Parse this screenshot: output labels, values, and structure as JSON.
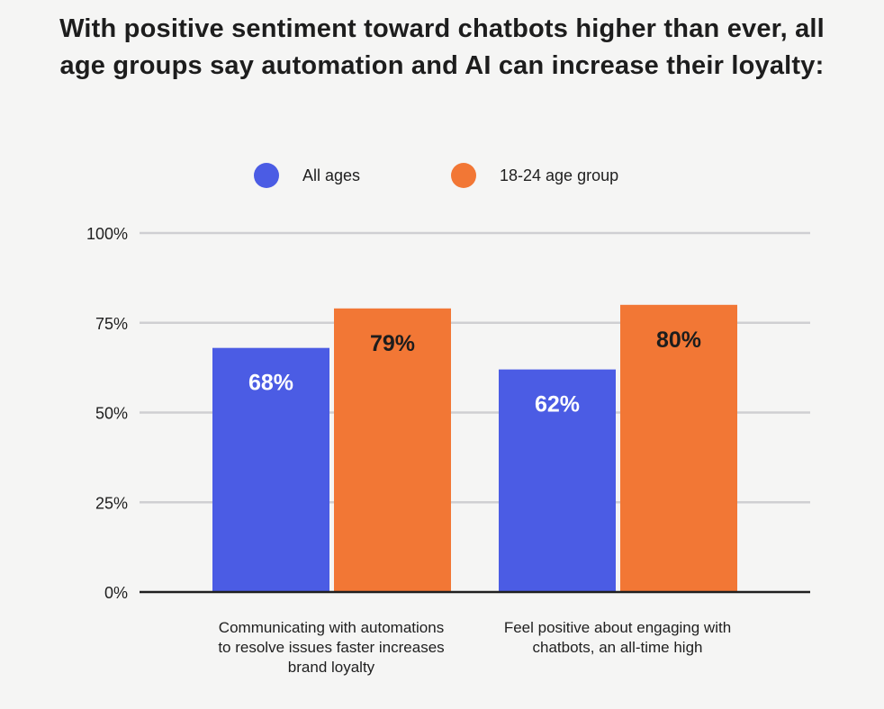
{
  "chart_data": {
    "type": "bar",
    "title": "With positive sentiment toward chatbots higher than ever, all age groups say automation and AI can increase their loyalty:",
    "categories": [
      "Communicating with automations to resolve issues faster increases brand loyalty",
      "Feel positive about engaging with chatbots, an all-time high"
    ],
    "series": [
      {
        "name": "All ages",
        "color": "#4b5ce4",
        "values": [
          68,
          62
        ],
        "labels": [
          "68%",
          "62%"
        ]
      },
      {
        "name": "18-24 age group",
        "color": "#f27735",
        "values": [
          79,
          80
        ],
        "labels": [
          "79%",
          "80%"
        ]
      }
    ],
    "ylim": [
      0,
      100
    ],
    "yticks": [
      0,
      25,
      50,
      75,
      100
    ],
    "ytick_labels": [
      "0%",
      "25%",
      "50%",
      "75%",
      "100%"
    ],
    "grid": true,
    "legend_position": "top-center"
  }
}
